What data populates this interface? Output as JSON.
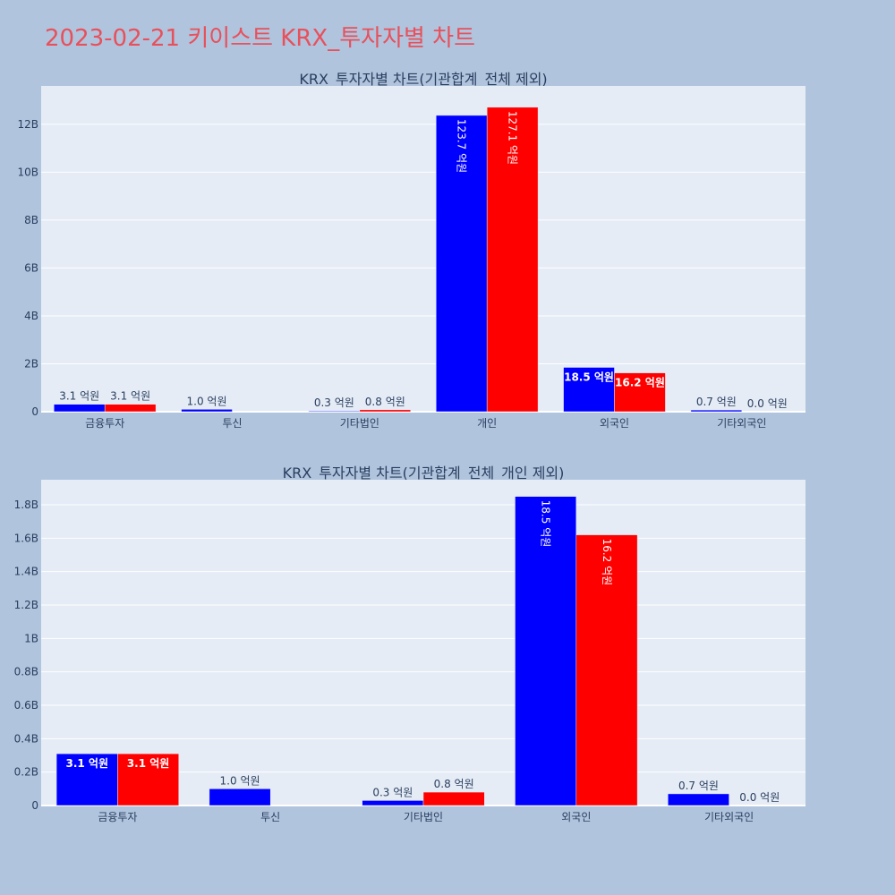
{
  "page": {
    "title": "2023-02-21 키이스트 KRX_투자자별 차트"
  },
  "chart_data": [
    {
      "type": "bar",
      "title": "KRX_투자자별 차트(기관합계_전체 제외)",
      "categories": [
        "금융투자",
        "투신",
        "기타법인",
        "개인",
        "외국인",
        "기타외국인"
      ],
      "series": [
        {
          "color": "#0000ff",
          "values": [
            310000000,
            100000000,
            30000000,
            12370000000,
            1850000000,
            70000000
          ],
          "labels": [
            "3.1 억원",
            "1.0 억원",
            "0.3 억원",
            "123.7 억원",
            "18.5 억원",
            "0.7 억원"
          ]
        },
        {
          "color": "#ff0000",
          "values": [
            310000000,
            0,
            80000000,
            12710000000,
            1620000000,
            0
          ],
          "labels": [
            "3.1 억원",
            "",
            "0.8 억원",
            "127.1 억원",
            "16.2 억원",
            "0.0 억원"
          ]
        }
      ],
      "ylim": [
        0,
        13600000000
      ],
      "yticks": [
        0,
        2000000000,
        4000000000,
        6000000000,
        8000000000,
        10000000000,
        12000000000
      ],
      "ytick_labels": [
        "0",
        "2B",
        "4B",
        "6B",
        "8B",
        "10B",
        "12B"
      ],
      "grid": true
    },
    {
      "type": "bar",
      "title": "KRX_투자자별 차트(기관합계_전체_개인 제외)",
      "categories": [
        "금융투자",
        "투신",
        "기타법인",
        "외국인",
        "기타외국인"
      ],
      "series": [
        {
          "color": "#0000ff",
          "values": [
            310000000,
            100000000,
            30000000,
            1850000000,
            70000000
          ],
          "labels": [
            "3.1 억원",
            "1.0 억원",
            "0.3 억원",
            "18.5 억원",
            "0.7 억원"
          ]
        },
        {
          "color": "#ff0000",
          "values": [
            310000000,
            0,
            80000000,
            1620000000,
            0
          ],
          "labels": [
            "3.1 억원",
            "",
            "0.8 억원",
            "16.2 억원",
            "0.0 억원"
          ]
        }
      ],
      "ylim": [
        0,
        1950000000
      ],
      "yticks": [
        0,
        200000000,
        400000000,
        600000000,
        800000000,
        1000000000,
        1200000000,
        1400000000,
        1600000000,
        1800000000
      ],
      "ytick_labels": [
        "0",
        "0.2B",
        "0.4B",
        "0.6B",
        "0.8B",
        "1B",
        "1.2B",
        "1.4B",
        "1.6B",
        "1.8B"
      ],
      "grid": true
    }
  ]
}
